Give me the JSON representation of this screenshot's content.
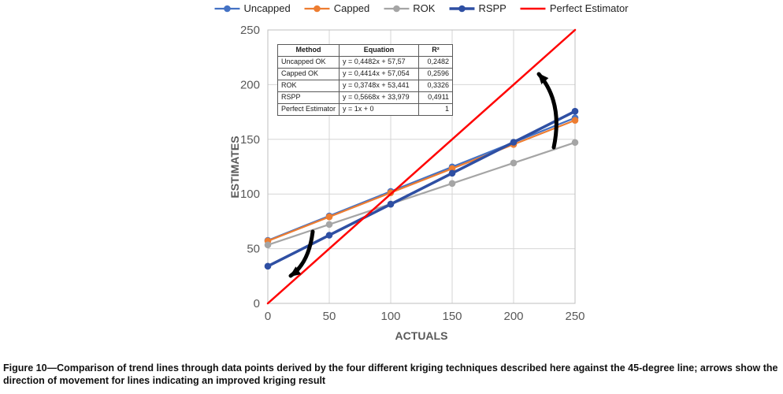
{
  "chart_data": {
    "type": "line",
    "x": [
      0,
      50,
      100,
      150,
      200,
      250
    ],
    "series": [
      {
        "name": "Uncapped",
        "color": "#4472C4",
        "width": 2.2,
        "marker": "circle",
        "values": [
          57.57,
          79.98,
          102.39,
          124.8,
          147.21,
          169.62
        ]
      },
      {
        "name": "Capped",
        "color": "#ED7D31",
        "width": 2.2,
        "marker": "circle",
        "values": [
          57.05,
          79.12,
          101.19,
          123.26,
          145.33,
          167.4
        ]
      },
      {
        "name": "ROK",
        "color": "#A5A5A5",
        "width": 2.2,
        "marker": "circle",
        "values": [
          53.44,
          72.18,
          90.92,
          109.66,
          128.4,
          147.14
        ]
      },
      {
        "name": "RSPP",
        "color": "#2E4FA3",
        "width": 3.5,
        "marker": "circle",
        "values": [
          33.98,
          62.32,
          90.66,
          119.0,
          147.34,
          175.68
        ]
      },
      {
        "name": "Perfect Estimator",
        "color": "#FF0000",
        "width": 2.5,
        "marker": "none",
        "values": [
          0,
          50,
          100,
          150,
          200,
          250
        ]
      }
    ],
    "title": "",
    "xlabel": "ACTUALS",
    "ylabel": "ESTIMATES",
    "xlim": [
      0,
      250
    ],
    "ylim": [
      0,
      250
    ],
    "xticks": [
      0,
      50,
      100,
      150,
      200,
      250
    ],
    "yticks": [
      0,
      50,
      100,
      150,
      200,
      250
    ],
    "grid": true,
    "legend_position": "top"
  },
  "equation_table": {
    "headers": [
      "Method",
      "Equation",
      "R²"
    ],
    "rows": [
      [
        "Uncapped OK",
        "y = 0,4482x + 57,57",
        "0,2482"
      ],
      [
        "Capped OK",
        "y = 0,4414x + 57,054",
        "0,2596"
      ],
      [
        "ROK",
        "y = 0,3748x + 53,441",
        "0,3326"
      ],
      [
        "RSPP",
        "y = 0,5668x + 33,979",
        "0,4911"
      ],
      [
        "Perfect Estimator",
        "y = 1x + 0",
        "1"
      ]
    ]
  },
  "caption": "Figure 10—Comparison of trend lines through data points derived by the four different kriging techniques described here against the 45-degree line; arrows show the direction of movement for lines indicating an improved kriging result"
}
